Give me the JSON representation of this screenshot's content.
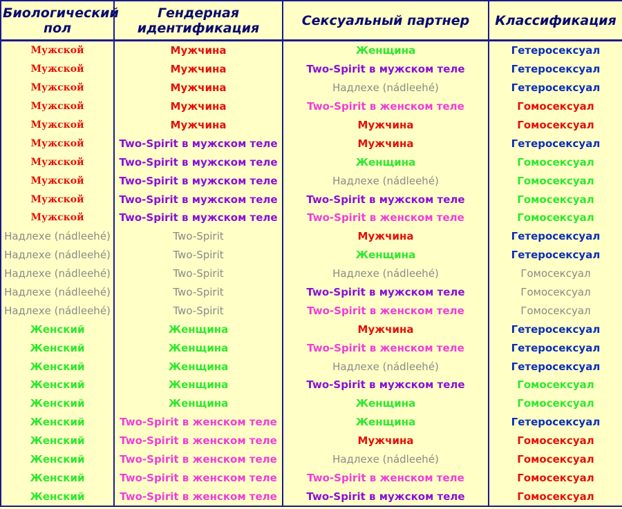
{
  "headers": [
    "Биологический пол",
    "Гендерная идентификация",
    "Сексуальный партнер",
    "Классификация"
  ],
  "colors": {
    "red": "#e3120b",
    "green": "#2ee82e",
    "gray": "#8a8a8a",
    "purple": "#8a10d6",
    "pink": "#f03ed6",
    "blue": "#0c2fb8",
    "background": "#ffffc6",
    "border": "#1a1a8c"
  },
  "rows": [
    {
      "sex": "Мужской",
      "gender": "Мужчина",
      "partner": "Женщина",
      "classification": "Гетеросексуал",
      "colors": [
        "male",
        "red",
        "green",
        "blue"
      ]
    },
    {
      "sex": "Мужской",
      "gender": "Мужчина",
      "partner": "Two-Spirit в мужском теле",
      "classification": "Гетеросексуал",
      "colors": [
        "male",
        "red",
        "purple",
        "blue"
      ]
    },
    {
      "sex": "Мужской",
      "gender": "Мужчина",
      "partner": "Надлехе (nádleehé)",
      "classification": "Гетеросексуал",
      "colors": [
        "male",
        "red",
        "gray",
        "blue"
      ]
    },
    {
      "sex": "Мужской",
      "gender": "Мужчина",
      "partner": "Two-Spirit в женском теле",
      "classification": "Гомосексуал",
      "colors": [
        "male",
        "red",
        "pink",
        "red"
      ]
    },
    {
      "sex": "Мужской",
      "gender": "Мужчина",
      "partner": "Мужчина",
      "classification": "Гомосексуал",
      "colors": [
        "male",
        "red",
        "red",
        "red"
      ]
    },
    {
      "sex": "Мужской",
      "gender": "Two-Spirit в мужском теле",
      "partner": "Мужчина",
      "classification": "Гетеросексуал",
      "colors": [
        "male",
        "purple",
        "red",
        "blue"
      ]
    },
    {
      "sex": "Мужской",
      "gender": "Two-Spirit в мужском теле",
      "partner": "Женщина",
      "classification": "Гомосексуал",
      "colors": [
        "male",
        "purple",
        "green",
        "green"
      ]
    },
    {
      "sex": "Мужской",
      "gender": "Two-Spirit в мужском теле",
      "partner": "Надлехе (nádleehé)",
      "classification": "Гомосексуал",
      "colors": [
        "male",
        "purple",
        "gray",
        "green"
      ]
    },
    {
      "sex": "Мужской",
      "gender": "Two-Spirit в мужском теле",
      "partner": "Two-Spirit в мужском теле",
      "classification": "Гомосексуал",
      "colors": [
        "male",
        "purple",
        "purple",
        "green"
      ]
    },
    {
      "sex": "Мужской",
      "gender": "Two-Spirit в мужском теле",
      "partner": "Two-Spirit в женском теле",
      "classification": "Гомосексуал",
      "colors": [
        "male",
        "purple",
        "pink",
        "green"
      ]
    },
    {
      "sex": "Надлехе (nádleehé)",
      "gender": "Two-Spirit",
      "partner": "Мужчина",
      "classification": "Гетеросексуал",
      "colors": [
        "gray",
        "gray",
        "red",
        "blue"
      ]
    },
    {
      "sex": "Надлехе (nádleehé)",
      "gender": "Two-Spirit",
      "partner": "Женщина",
      "classification": "Гетеросексуал",
      "colors": [
        "gray",
        "gray",
        "green",
        "blue"
      ]
    },
    {
      "sex": "Надлехе (nádleehé)",
      "gender": "Two-Spirit",
      "partner": "Надлехе (nádleehé)",
      "classification": "Гомосексуал",
      "colors": [
        "gray",
        "gray",
        "gray",
        "gray"
      ]
    },
    {
      "sex": "Надлехе (nádleehé)",
      "gender": "Two-Spirit",
      "partner": "Two-Spirit в мужском теле",
      "classification": "Гомосексуал",
      "colors": [
        "gray",
        "gray",
        "purple",
        "gray"
      ]
    },
    {
      "sex": "Надлехе (nádleehé)",
      "gender": "Two-Spirit",
      "partner": "Two-Spirit в женском теле",
      "classification": "Гомосексуал",
      "colors": [
        "gray",
        "gray",
        "pink",
        "gray"
      ]
    },
    {
      "sex": "Женский",
      "gender": "Женщина",
      "partner": "Мужчина",
      "classification": "Гетеросексуал",
      "colors": [
        "green",
        "green",
        "red",
        "blue"
      ]
    },
    {
      "sex": "Женский",
      "gender": "Женщина",
      "partner": "Two-Spirit в женском теле",
      "classification": "Гетеросексуал",
      "colors": [
        "green",
        "green",
        "pink",
        "blue"
      ]
    },
    {
      "sex": "Женский",
      "gender": "Женщина",
      "partner": "Надлехе (nádleehé)",
      "classification": "Гетеросексуал",
      "colors": [
        "green",
        "green",
        "gray",
        "blue"
      ]
    },
    {
      "sex": "Женский",
      "gender": "Женщина",
      "partner": "Two-Spirit в мужском теле",
      "classification": "Гомосексуал",
      "colors": [
        "green",
        "green",
        "purple",
        "green"
      ]
    },
    {
      "sex": "Женский",
      "gender": "Женщина",
      "partner": "Женщина",
      "classification": "Гомосексуал",
      "colors": [
        "green",
        "green",
        "green",
        "green"
      ]
    },
    {
      "sex": "Женский",
      "gender": "Two-Spirit в женском теле",
      "partner": "Женщина",
      "classification": "Гетеросексуал",
      "colors": [
        "green",
        "pink",
        "green",
        "blue"
      ]
    },
    {
      "sex": "Женский",
      "gender": "Two-Spirit в женском теле",
      "partner": "Мужчина",
      "classification": "Гомосексуал",
      "colors": [
        "green",
        "pink",
        "red",
        "red"
      ]
    },
    {
      "sex": "Женский",
      "gender": "Two-Spirit в женском теле",
      "partner": "Надлехе (nádleehé)",
      "classification": "Гомосексуал",
      "colors": [
        "green",
        "pink",
        "gray",
        "red"
      ]
    },
    {
      "sex": "Женский",
      "gender": "Two-Spirit в женском теле",
      "partner": "Two-Spirit в женском теле",
      "classification": "Гомосексуал",
      "colors": [
        "green",
        "pink",
        "pink",
        "red"
      ]
    },
    {
      "sex": "Женский",
      "gender": "Two-Spirit в женском теле",
      "partner": "Two-Spirit в мужском теле",
      "classification": "Гомосексуал",
      "colors": [
        "green",
        "pink",
        "purple",
        "red"
      ]
    }
  ]
}
